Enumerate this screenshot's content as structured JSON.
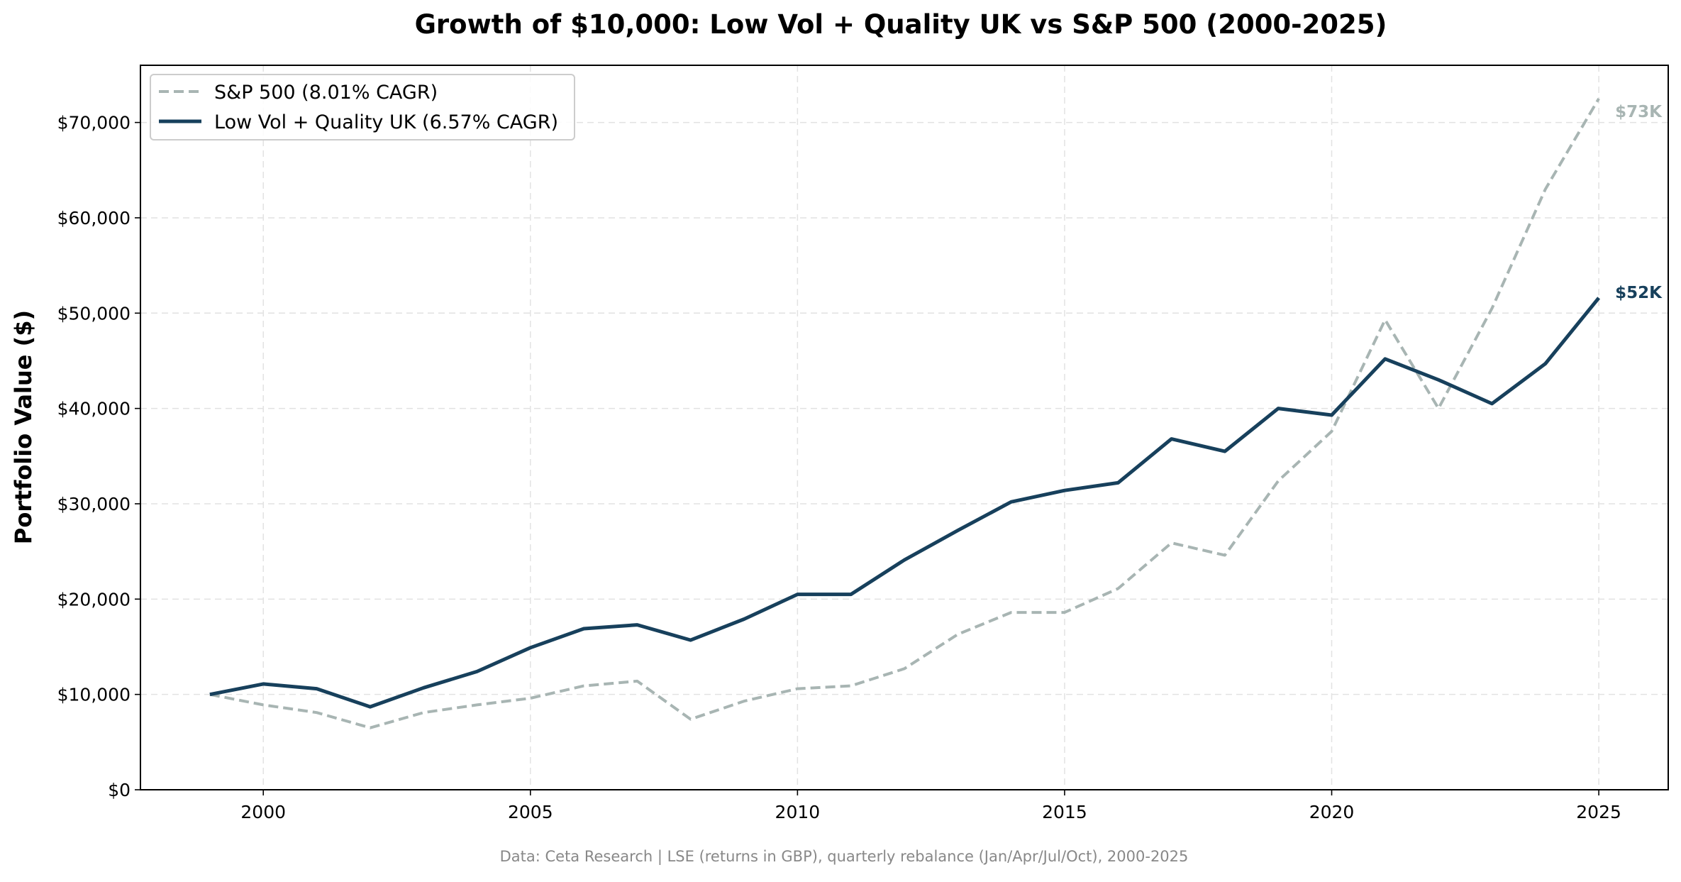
{
  "chart_data": {
    "type": "line",
    "title": "Growth of $10,000: Low Vol + Quality UK vs S&P 500 (2000-2025)",
    "xlabel": "",
    "ylabel": "Portfolio Value ($)",
    "source_note": "Data: Ceta Research | LSE (returns in GBP), quarterly rebalance (Jan/Apr/Jul/Oct), 2000-2025",
    "xlim": [
      1997.7,
      2026.3
    ],
    "ylim": [
      0,
      76000
    ],
    "x_ticks": [
      2000,
      2005,
      2010,
      2015,
      2020,
      2025
    ],
    "y_ticks": [
      0,
      10000,
      20000,
      30000,
      40000,
      50000,
      60000,
      70000
    ],
    "y_tick_labels": [
      "$0",
      "$10,000",
      "$20,000",
      "$30,000",
      "$40,000",
      "$50,000",
      "$60,000",
      "$70,000"
    ],
    "grid": true,
    "legend_position": "top-left",
    "x": [
      1999,
      2000,
      2001,
      2002,
      2003,
      2004,
      2005,
      2006,
      2007,
      2008,
      2009,
      2010,
      2011,
      2012,
      2013,
      2014,
      2015,
      2016,
      2017,
      2018,
      2019,
      2020,
      2021,
      2022,
      2023,
      2024,
      2025
    ],
    "series": [
      {
        "name": "S&P 500 (8.01% CAGR)",
        "color": "#a8b5b3",
        "style": "dashed",
        "end_label": "$73K",
        "values": [
          10000,
          8900,
          8100,
          6500,
          8100,
          8900,
          9600,
          10900,
          11400,
          7400,
          9300,
          10600,
          10900,
          12700,
          16300,
          18600,
          18600,
          21100,
          25900,
          24600,
          32400,
          37600,
          49300,
          40000,
          50500,
          63000,
          72500
        ]
      },
      {
        "name": "Low Vol + Quality UK (6.57% CAGR)",
        "color": "#17405c",
        "style": "solid",
        "end_label": "$52K",
        "values": [
          10000,
          11100,
          10600,
          8700,
          10700,
          12400,
          14900,
          16900,
          17300,
          15700,
          17900,
          20500,
          20500,
          24100,
          27200,
          30200,
          31400,
          32200,
          36800,
          35500,
          40000,
          39300,
          45200,
          43000,
          40500,
          44700,
          51600
        ]
      }
    ]
  }
}
